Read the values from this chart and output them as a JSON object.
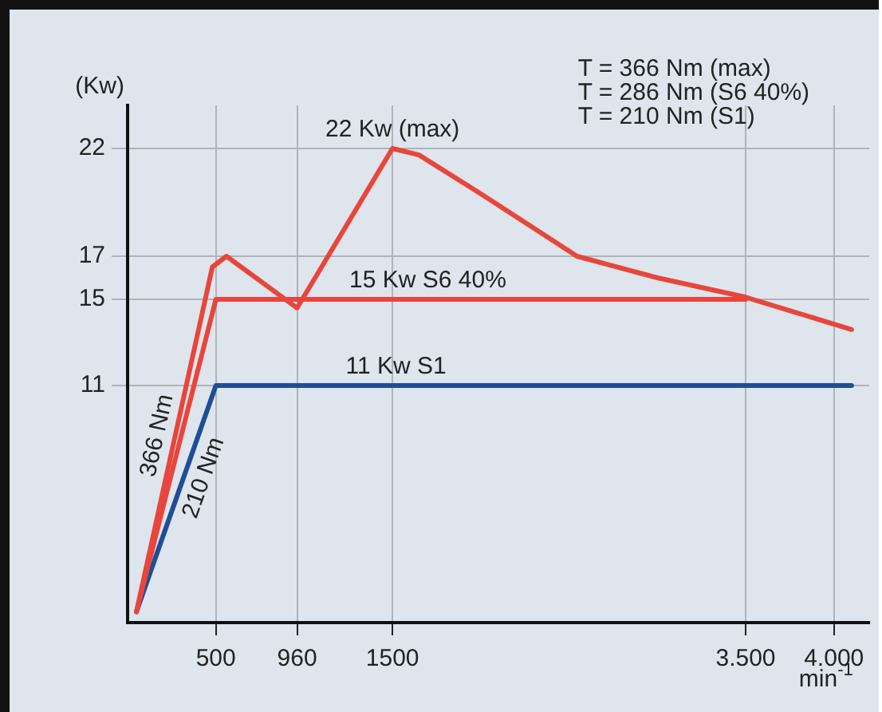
{
  "chart_data": {
    "type": "line",
    "ylabel": "(Kw)",
    "xlabel": "min$^{-1}$",
    "xlim": [
      0,
      4200
    ],
    "xticks": [
      500,
      960,
      1500,
      {
        "value": 3500,
        "label": "3.500"
      },
      {
        "value": 4000,
        "label": "4.000"
      }
    ],
    "ylim": [
      0,
      24
    ],
    "yticks": [
      11,
      15,
      17,
      22
    ],
    "grid": true,
    "legend": false,
    "marker": "none",
    "line_style": "solid",
    "series": [
      {
        "color": "#e8463c",
        "x": [
          50,
          480,
          560,
          960,
          1500,
          1650,
          2000,
          2545,
          3000,
          3500,
          4100
        ],
        "values": [
          0.5,
          16.5,
          17,
          14.6,
          22,
          21.7,
          19.9,
          17,
          16,
          15.1,
          13.6
        ]
      },
      {
        "color": "#e8463c",
        "x": [
          50,
          500,
          3500
        ],
        "values": [
          0.5,
          15,
          15
        ]
      },
      {
        "color": "#1f4e96",
        "x": [
          50,
          500,
          4100
        ],
        "values": [
          0.5,
          11,
          11
        ]
      }
    ],
    "annotations": [
      {
        "text": "22 Kw (max)",
        "x": 1500,
        "y": 22
      },
      {
        "text": "15 Kw S6 40%",
        "x": 1700,
        "y": 15
      },
      {
        "text": "11 Kw S1",
        "x": 1520,
        "y": 11
      },
      "366 Nm",
      "210 Nm",
      "T = 366 Nm (max)",
      "T = 286 Nm (S6 40%)",
      "T = 210 Nm (S1)"
    ]
  }
}
